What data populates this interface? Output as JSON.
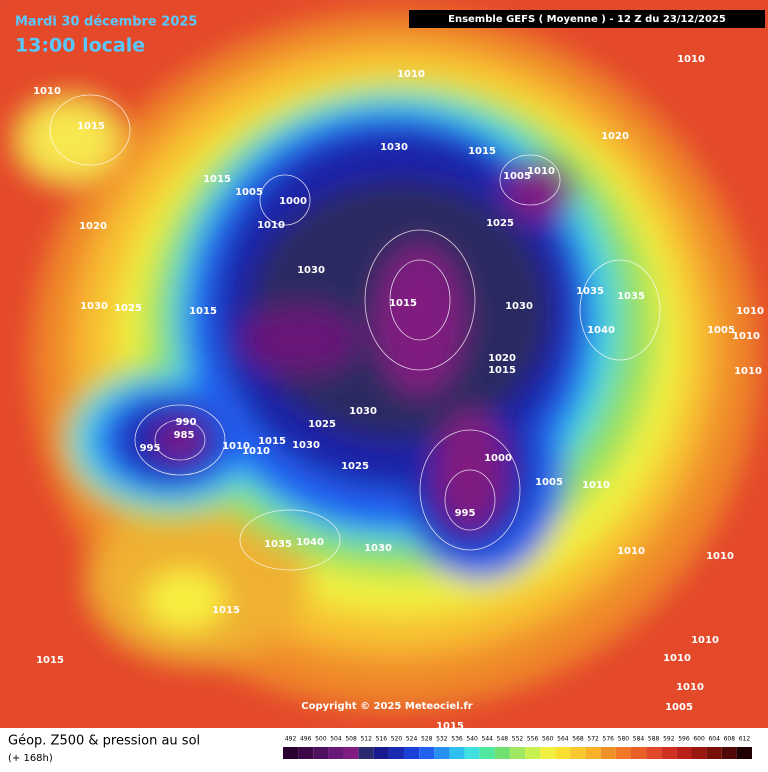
{
  "header": {
    "date": "Mardi 30 décembre 2025",
    "time": "13:00 locale",
    "model": "Ensemble GEFS  ( Moyenne )  -  12 Z du 23/12/2025"
  },
  "copyright": "Copyright © 2025 Meteociel.fr",
  "footer": {
    "title": "Géop. Z500 & pression au sol",
    "lead": "(+ 168h)"
  },
  "isobar_labels": [
    "1010",
    "1015",
    "1010",
    "1010",
    "1030",
    "1015",
    "1020",
    "1005",
    "1010",
    "1015",
    "1005",
    "1000",
    "1010",
    "1020",
    "1025",
    "1030",
    "1015",
    "1030",
    "1035",
    "1035",
    "1030",
    "1025",
    "1015",
    "1040",
    "1005",
    "1010",
    "1010",
    "1020",
    "1015",
    "1010",
    "1030",
    "1025",
    "990",
    "985",
    "995",
    "1010",
    "1010",
    "1015",
    "1030",
    "1025",
    "1000",
    "1005",
    "1010",
    "995",
    "1035",
    "1040",
    "1030",
    "1010",
    "1010",
    "1015",
    "1015",
    "1010",
    "1010",
    "1010",
    "1005",
    "1015"
  ],
  "colorbar": {
    "labels": [
      "492",
      "496",
      "500",
      "504",
      "508",
      "512",
      "516",
      "520",
      "524",
      "528",
      "532",
      "536",
      "540",
      "544",
      "548",
      "552",
      "556",
      "560",
      "564",
      "568",
      "572",
      "576",
      "580",
      "584",
      "588",
      "592",
      "596",
      "600",
      "604",
      "608",
      "612"
    ],
    "colors": [
      "#2a0030",
      "#3c0848",
      "#501060",
      "#681878",
      "#801c80",
      "#2a2a70",
      "#1a1a90",
      "#1a2ab0",
      "#1a40d8",
      "#2060f0",
      "#2890f0",
      "#30c0f0",
      "#40e0e0",
      "#50e8a0",
      "#70e070",
      "#a0e860",
      "#c8f050",
      "#f0f040",
      "#f8e030",
      "#f8c830",
      "#f8b028",
      "#f09028",
      "#f07828",
      "#e86028",
      "#e04828",
      "#d03020",
      "#b82018",
      "#981810",
      "#781008",
      "#500808",
      "#200000"
    ]
  }
}
